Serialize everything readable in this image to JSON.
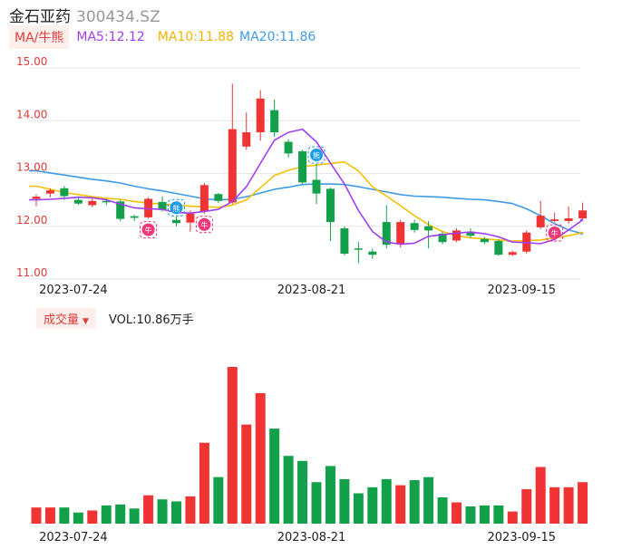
{
  "stock": {
    "name": "金石亚药",
    "code": "300434.SZ"
  },
  "ma_legend": {
    "tag": "MA/牛熊",
    "ma5": "MA5:12.12",
    "ma10": "MA10:11.88",
    "ma20": "MA20:11.86"
  },
  "volume_legend": {
    "tag": "成交量",
    "value": "VOL:10.86万手"
  },
  "colors": {
    "up": "#f03434",
    "down": "#13a04a",
    "ma5": "#a03ff0",
    "ma10": "#f6c000",
    "ma20": "#3d9be8",
    "axis_label": "#e03b3b",
    "grid": "#e6e6e6"
  },
  "chart_data": [
    {
      "type": "candlestick",
      "y_ticks": [
        "15.00",
        "14.00",
        "13.00",
        "12.00",
        "11.00"
      ],
      "ylim": [
        11.0,
        15.0
      ],
      "x_tick_labels": [
        {
          "index": 2,
          "label": "2023-07-24"
        },
        {
          "index": 19,
          "label": "2023-08-21"
        },
        {
          "index": 34,
          "label": "2023-09-15"
        }
      ],
      "candles": [
        {
          "o": 12.52,
          "c": 12.56,
          "h": 12.6,
          "l": 12.38
        },
        {
          "o": 12.62,
          "c": 12.68,
          "h": 12.72,
          "l": 12.55
        },
        {
          "o": 12.72,
          "c": 12.57,
          "h": 12.76,
          "l": 12.5
        },
        {
          "o": 12.5,
          "c": 12.43,
          "h": 12.55,
          "l": 12.4
        },
        {
          "o": 12.4,
          "c": 12.48,
          "h": 12.53,
          "l": 12.36
        },
        {
          "o": 12.48,
          "c": 12.46,
          "h": 12.52,
          "l": 12.4
        },
        {
          "o": 12.47,
          "c": 12.14,
          "h": 12.5,
          "l": 12.1
        },
        {
          "o": 12.19,
          "c": 12.16,
          "h": 12.22,
          "l": 12.1
        },
        {
          "o": 12.17,
          "c": 12.52,
          "h": 12.55,
          "l": 12.14
        },
        {
          "o": 12.46,
          "c": 12.31,
          "h": 12.57,
          "l": 12.28
        },
        {
          "o": 12.12,
          "c": 12.06,
          "h": 12.18,
          "l": 12.0
        },
        {
          "o": 12.07,
          "c": 12.24,
          "h": 12.3,
          "l": 11.9
        },
        {
          "o": 12.28,
          "c": 12.78,
          "h": 12.82,
          "l": 12.24
        },
        {
          "o": 12.61,
          "c": 12.48,
          "h": 12.63,
          "l": 12.44
        },
        {
          "o": 12.45,
          "c": 13.84,
          "h": 14.7,
          "l": 12.42
        },
        {
          "o": 13.51,
          "c": 13.78,
          "h": 14.16,
          "l": 13.45
        },
        {
          "o": 13.78,
          "c": 14.42,
          "h": 14.58,
          "l": 13.62
        },
        {
          "o": 14.2,
          "c": 13.78,
          "h": 14.4,
          "l": 13.7
        },
        {
          "o": 13.6,
          "c": 13.38,
          "h": 13.65,
          "l": 13.3
        },
        {
          "o": 13.42,
          "c": 12.83,
          "h": 13.45,
          "l": 12.8
        },
        {
          "o": 12.88,
          "c": 12.62,
          "h": 13.18,
          "l": 12.42
        },
        {
          "o": 12.71,
          "c": 12.08,
          "h": 12.73,
          "l": 11.72
        },
        {
          "o": 11.96,
          "c": 11.48,
          "h": 12.0,
          "l": 11.45
        },
        {
          "o": 11.58,
          "c": 11.56,
          "h": 11.7,
          "l": 11.3
        },
        {
          "o": 11.52,
          "c": 11.46,
          "h": 11.58,
          "l": 11.38
        },
        {
          "o": 12.08,
          "c": 11.65,
          "h": 12.4,
          "l": 11.58
        },
        {
          "o": 11.66,
          "c": 12.08,
          "h": 12.12,
          "l": 11.6
        },
        {
          "o": 12.06,
          "c": 11.93,
          "h": 12.12,
          "l": 11.88
        },
        {
          "o": 12.0,
          "c": 11.92,
          "h": 12.1,
          "l": 11.58
        },
        {
          "o": 11.86,
          "c": 11.7,
          "h": 11.9,
          "l": 11.66
        },
        {
          "o": 11.73,
          "c": 11.92,
          "h": 11.96,
          "l": 11.7
        },
        {
          "o": 11.9,
          "c": 11.82,
          "h": 11.96,
          "l": 11.78
        },
        {
          "o": 11.76,
          "c": 11.7,
          "h": 11.8,
          "l": 11.66
        },
        {
          "o": 11.72,
          "c": 11.46,
          "h": 11.75,
          "l": 11.44
        },
        {
          "o": 11.46,
          "c": 11.51,
          "h": 11.54,
          "l": 11.44
        },
        {
          "o": 11.52,
          "c": 11.88,
          "h": 11.92,
          "l": 11.48
        },
        {
          "o": 11.98,
          "c": 12.2,
          "h": 12.48,
          "l": 11.95
        },
        {
          "o": 12.1,
          "c": 12.13,
          "h": 12.26,
          "l": 12.08
        },
        {
          "o": 12.1,
          "c": 12.15,
          "h": 12.38,
          "l": 12.05
        },
        {
          "o": 12.15,
          "c": 12.3,
          "h": 12.45,
          "l": 12.12
        }
      ],
      "ma5": [
        12.5,
        12.51,
        12.53,
        12.55,
        12.54,
        12.5,
        12.42,
        12.35,
        12.33,
        12.32,
        12.26,
        12.25,
        12.28,
        12.32,
        12.47,
        12.75,
        13.19,
        13.63,
        13.78,
        13.84,
        13.6,
        13.2,
        12.8,
        12.3,
        11.9,
        11.7,
        11.66,
        11.68,
        11.81,
        11.84,
        11.87,
        11.89,
        11.86,
        11.8,
        11.7,
        11.69,
        11.67,
        11.75,
        11.93,
        12.12
      ],
      "ma10": [
        12.76,
        12.7,
        12.64,
        12.6,
        12.56,
        12.53,
        12.51,
        12.47,
        12.44,
        12.42,
        12.4,
        12.38,
        12.37,
        12.36,
        12.4,
        12.5,
        12.73,
        12.96,
        13.06,
        13.13,
        13.16,
        13.19,
        13.22,
        13.05,
        12.75,
        12.57,
        12.39,
        12.2,
        12.03,
        11.9,
        11.82,
        11.78,
        11.76,
        11.74,
        11.72,
        11.73,
        11.74,
        11.78,
        11.82,
        11.88
      ],
      "ma20": [
        13.05,
        13.01,
        12.97,
        12.93,
        12.89,
        12.86,
        12.82,
        12.76,
        12.71,
        12.67,
        12.62,
        12.57,
        12.52,
        12.5,
        12.51,
        12.56,
        12.63,
        12.7,
        12.74,
        12.79,
        12.8,
        12.8,
        12.79,
        12.75,
        12.7,
        12.65,
        12.6,
        12.57,
        12.56,
        12.55,
        12.53,
        12.51,
        12.5,
        12.47,
        12.43,
        12.33,
        12.2,
        12.05,
        11.93,
        11.86
      ],
      "markers": [
        {
          "index": 8,
          "label": "牛",
          "kind": "bull"
        },
        {
          "index": 10,
          "label": "熊",
          "kind": "bear"
        },
        {
          "index": 12,
          "label": "牛",
          "kind": "bull"
        },
        {
          "index": 20,
          "label": "熊",
          "kind": "bear"
        },
        {
          "index": 37,
          "label": "牛",
          "kind": "bull"
        }
      ]
    },
    {
      "type": "bar",
      "series": [
        {
          "values": [
            1.6,
            1.6,
            1.6,
            1.1,
            1.3,
            1.8,
            1.9,
            1.5,
            2.8,
            2.4,
            2.2,
            2.7,
            8.0,
            4.6,
            15.5,
            9.8,
            12.9,
            9.4,
            6.7,
            6.2,
            4.1,
            5.7,
            4.4,
            3.0,
            3.6,
            4.4,
            3.8,
            4.3,
            4.6,
            2.6,
            2.1,
            1.7,
            1.8,
            1.8,
            1.2,
            3.4,
            5.6,
            3.6,
            3.6,
            4.1
          ]
        }
      ]
    }
  ]
}
